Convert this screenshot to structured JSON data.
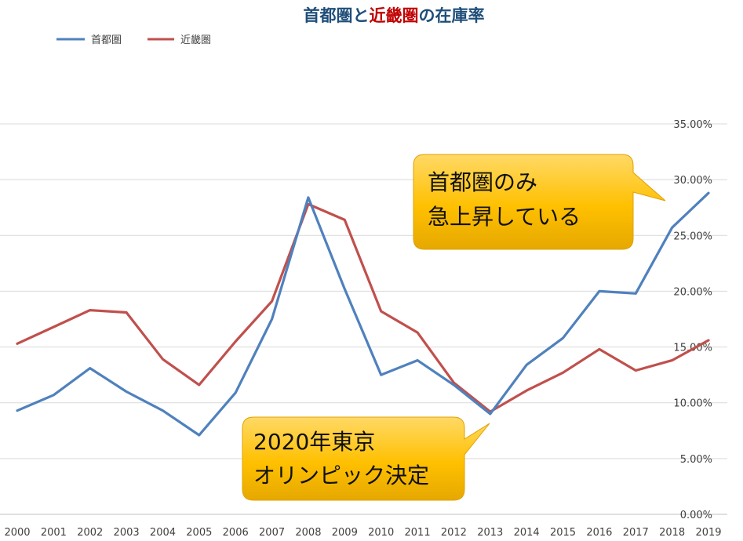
{
  "chart_data": {
    "type": "line",
    "title": {
      "part1": "首都圏",
      "part2": "と",
      "part3": "近畿圏",
      "part4": "の在庫率"
    },
    "categories": [
      "2000",
      "2001",
      "2002",
      "2003",
      "2004",
      "2005",
      "2006",
      "2007",
      "2008",
      "2009",
      "2010",
      "2011",
      "2012",
      "2013",
      "2014",
      "2015",
      "2016",
      "2017",
      "2018",
      "2019"
    ],
    "series": [
      {
        "name": "首都圏",
        "color": "#4F81BD",
        "values": [
          9.3,
          10.7,
          13.1,
          11.0,
          9.3,
          7.1,
          10.9,
          17.5,
          28.4,
          20.2,
          12.5,
          13.8,
          11.6,
          9.0,
          13.4,
          15.8,
          20.0,
          19.8,
          25.7,
          28.8
        ]
      },
      {
        "name": "近畿圏",
        "color": "#C0504D",
        "values": [
          15.3,
          16.8,
          18.3,
          18.1,
          13.9,
          11.6,
          15.5,
          19.1,
          27.8,
          26.4,
          18.2,
          16.3,
          11.8,
          9.2,
          11.1,
          12.7,
          14.8,
          12.9,
          13.8,
          15.6
        ]
      }
    ],
    "y_ticks": [
      "0.00%",
      "5.00%",
      "10.00%",
      "15.00%",
      "20.00%",
      "25.00%",
      "30.00%",
      "35.00%"
    ],
    "ylim": [
      0,
      35
    ],
    "grid": true,
    "legend": "top-left",
    "annotations": [
      {
        "lines": [
          "首都圏のみ",
          "急上昇している"
        ]
      },
      {
        "lines": [
          "2020年東京",
          "オリンピック決定"
        ]
      }
    ]
  }
}
